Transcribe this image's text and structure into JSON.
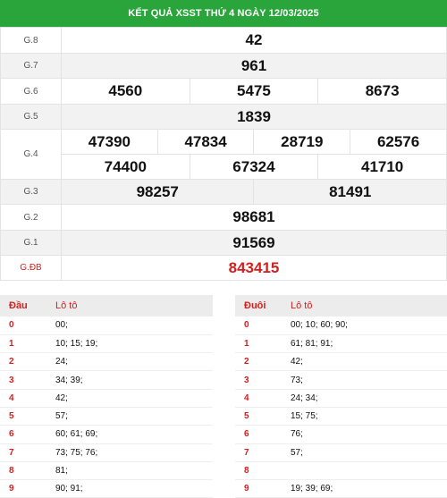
{
  "header": {
    "title": "KẾT QUẢ XSST THỨ 4 NGÀY 12/03/2025"
  },
  "prizes": {
    "g8": {
      "label": "G.8",
      "nums": [
        "42"
      ]
    },
    "g7": {
      "label": "G.7",
      "nums": [
        "961"
      ]
    },
    "g6": {
      "label": "G.6",
      "nums": [
        "4560",
        "5475",
        "8673"
      ]
    },
    "g5": {
      "label": "G.5",
      "nums": [
        "1839"
      ]
    },
    "g4": {
      "label": "G.4",
      "nums": [
        "47390",
        "47834",
        "28719",
        "62576",
        "74400",
        "67324",
        "41710"
      ]
    },
    "g3": {
      "label": "G.3",
      "nums": [
        "98257",
        "81491"
      ]
    },
    "g2": {
      "label": "G.2",
      "nums": [
        "98681"
      ]
    },
    "g1": {
      "label": "G.1",
      "nums": [
        "91569"
      ]
    },
    "gdb": {
      "label": "G.ĐB",
      "nums": [
        "843415"
      ]
    }
  },
  "dau": {
    "head": "Đầu",
    "col": "Lô tô",
    "rows": [
      {
        "k": "0",
        "v": "00;"
      },
      {
        "k": "1",
        "v": "10; 15; 19;"
      },
      {
        "k": "2",
        "v": "24;"
      },
      {
        "k": "3",
        "v": "34; 39;"
      },
      {
        "k": "4",
        "v": "42;"
      },
      {
        "k": "5",
        "v": "57;"
      },
      {
        "k": "6",
        "v": "60; 61; 69;"
      },
      {
        "k": "7",
        "v": "73; 75; 76;"
      },
      {
        "k": "8",
        "v": "81;"
      },
      {
        "k": "9",
        "v": "90; 91;"
      }
    ]
  },
  "duoi": {
    "head": "Đuôi",
    "col": "Lô tô",
    "rows": [
      {
        "k": "0",
        "v": "00; 10; 60; 90;"
      },
      {
        "k": "1",
        "v": "61; 81; 91;"
      },
      {
        "k": "2",
        "v": "42;"
      },
      {
        "k": "3",
        "v": "73;"
      },
      {
        "k": "4",
        "v": "24; 34;"
      },
      {
        "k": "5",
        "v": "15; 75;"
      },
      {
        "k": "6",
        "v": "76;"
      },
      {
        "k": "7",
        "v": "57;"
      },
      {
        "k": "8",
        "v": ""
      },
      {
        "k": "9",
        "v": "19; 39; 69;"
      }
    ]
  },
  "colors": {
    "header_bg": "#2aa53b",
    "special_red": "#d21f1f"
  }
}
